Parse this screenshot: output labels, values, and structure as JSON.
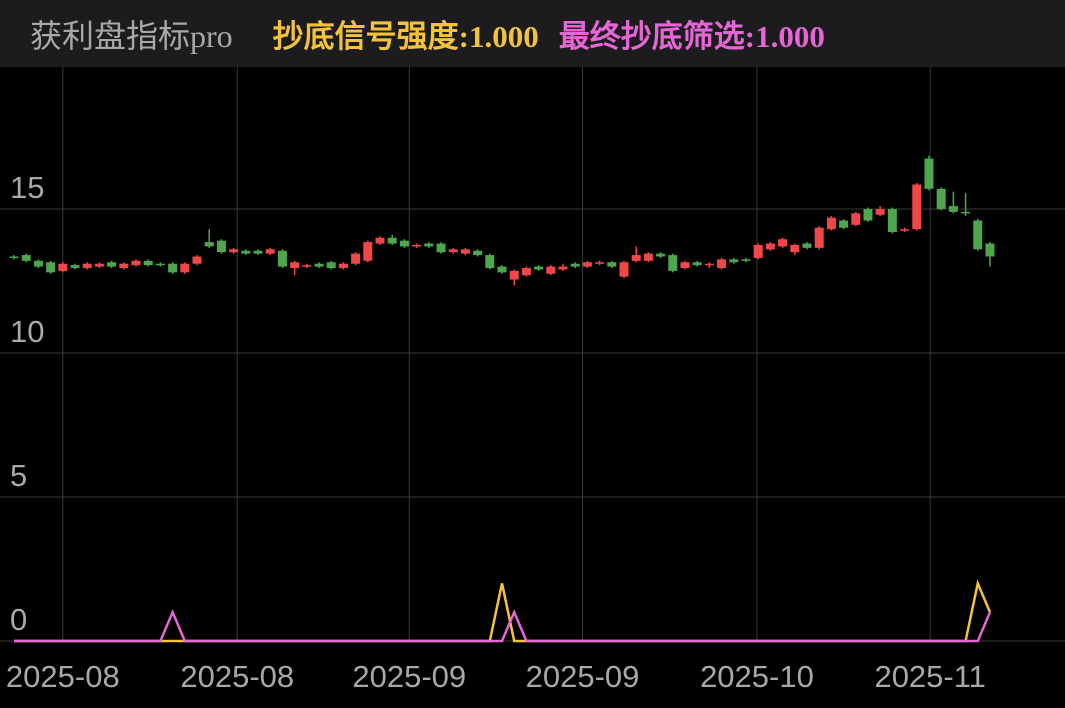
{
  "chart_data": {
    "type": "candlestick",
    "title": "获利盘指标pro",
    "legend_separator": ":",
    "up_color": "#f2474a",
    "down_color": "#4ea64f",
    "open": [
      13.35,
      13.4,
      13.2,
      13.15,
      12.85,
      13.05,
      12.95,
      13.0,
      13.15,
      12.95,
      13.05,
      13.2,
      13.1,
      13.1,
      12.8,
      13.1,
      13.85,
      13.9,
      13.5,
      13.55,
      13.55,
      13.45,
      13.55,
      12.95,
      13.0,
      13.1,
      13.15,
      12.95,
      13.1,
      13.2,
      13.8,
      14.0,
      13.9,
      13.7,
      13.8,
      13.8,
      13.5,
      13.45,
      13.55,
      13.4,
      13.0,
      12.55,
      12.7,
      13.0,
      12.75,
      12.9,
      13.1,
      13.0,
      13.1,
      13.15,
      12.65,
      13.2,
      13.2,
      13.45,
      13.4,
      12.95,
      13.15,
      13.05,
      12.95,
      13.25,
      13.25,
      13.3,
      13.6,
      13.7,
      13.5,
      13.8,
      13.65,
      14.3,
      14.6,
      14.45,
      15.0,
      14.8,
      15.0,
      14.25,
      14.3,
      16.75,
      15.7,
      15.1,
      14.9,
      14.6,
      13.8
    ],
    "close": [
      13.3,
      13.2,
      13.0,
      12.8,
      13.1,
      12.95,
      13.1,
      13.1,
      13.0,
      13.1,
      13.2,
      13.05,
      13.05,
      12.8,
      13.1,
      13.35,
      13.7,
      13.5,
      13.6,
      13.45,
      13.45,
      13.6,
      13.0,
      13.15,
      13.05,
      13.0,
      12.95,
      13.1,
      13.45,
      13.85,
      14.0,
      13.8,
      13.7,
      13.75,
      13.7,
      13.5,
      13.6,
      13.6,
      13.4,
      12.95,
      12.8,
      12.85,
      12.95,
      12.9,
      13.0,
      13.0,
      13.0,
      13.15,
      13.15,
      13.0,
      13.15,
      13.4,
      13.45,
      13.35,
      12.85,
      13.15,
      13.05,
      13.1,
      13.25,
      13.15,
      13.2,
      13.75,
      13.8,
      13.95,
      13.75,
      13.65,
      14.35,
      14.7,
      14.35,
      14.85,
      14.6,
      15.0,
      14.2,
      14.3,
      15.85,
      15.7,
      15.0,
      14.9,
      14.85,
      13.6,
      13.35
    ],
    "high": [
      13.4,
      13.45,
      13.25,
      13.2,
      13.15,
      13.1,
      13.15,
      13.15,
      13.2,
      13.15,
      13.25,
      13.25,
      13.15,
      13.15,
      13.15,
      13.4,
      14.3,
      13.95,
      13.65,
      13.6,
      13.6,
      13.65,
      13.6,
      13.2,
      13.1,
      13.15,
      13.2,
      13.15,
      13.5,
      13.9,
      14.05,
      14.1,
      13.95,
      13.8,
      13.85,
      13.85,
      13.65,
      13.65,
      13.6,
      13.45,
      13.05,
      12.9,
      13.0,
      13.05,
      13.05,
      13.1,
      13.15,
      13.2,
      13.2,
      13.2,
      13.2,
      13.7,
      13.5,
      13.5,
      13.45,
      13.2,
      13.2,
      13.15,
      13.3,
      13.3,
      13.3,
      13.8,
      13.85,
      14.0,
      13.8,
      13.85,
      14.4,
      14.75,
      14.65,
      14.9,
      15.05,
      15.1,
      15.05,
      14.35,
      15.9,
      16.85,
      15.75,
      15.6,
      15.55,
      14.65,
      13.85
    ],
    "low": [
      13.25,
      13.15,
      12.95,
      12.75,
      12.8,
      12.9,
      12.9,
      12.95,
      12.95,
      12.9,
      13.0,
      13.0,
      13.0,
      12.75,
      12.75,
      13.05,
      13.65,
      13.45,
      13.45,
      13.4,
      13.4,
      13.4,
      12.95,
      12.7,
      12.95,
      12.95,
      12.9,
      12.9,
      13.05,
      13.15,
      13.75,
      13.75,
      13.65,
      13.65,
      13.65,
      13.45,
      13.45,
      13.4,
      13.35,
      12.9,
      12.75,
      12.35,
      12.65,
      12.85,
      12.7,
      12.85,
      12.95,
      12.95,
      13.05,
      12.95,
      12.6,
      13.15,
      13.15,
      13.3,
      12.8,
      12.9,
      13.0,
      12.95,
      12.9,
      13.1,
      13.15,
      13.25,
      13.55,
      13.65,
      13.4,
      13.6,
      13.6,
      14.25,
      14.3,
      14.4,
      14.55,
      14.75,
      14.15,
      14.2,
      14.25,
      15.65,
      14.95,
      14.85,
      14.75,
      13.55,
      13.0
    ],
    "series": [
      {
        "name": "抄底信号强度",
        "color": "#f5c23c",
        "value_label": "1.000",
        "values": [
          0,
          0,
          0,
          0,
          0,
          0,
          0,
          0,
          0,
          0,
          0,
          0,
          0,
          0,
          0,
          0,
          0,
          0,
          0,
          0,
          0,
          0,
          0,
          0,
          0,
          0,
          0,
          0,
          0,
          0,
          0,
          0,
          0,
          0,
          0,
          0,
          0,
          0,
          0,
          0,
          2,
          0,
          0,
          0,
          0,
          0,
          0,
          0,
          0,
          0,
          0,
          0,
          0,
          0,
          0,
          0,
          0,
          0,
          0,
          0,
          0,
          0,
          0,
          0,
          0,
          0,
          0,
          0,
          0,
          0,
          0,
          0,
          0,
          0,
          0,
          0,
          0,
          0,
          0,
          2,
          1
        ]
      },
      {
        "name": "最终抄底筛选",
        "color": "#e567d6",
        "value_label": "1.000",
        "values": [
          0,
          0,
          0,
          0,
          0,
          0,
          0,
          0,
          0,
          0,
          0,
          0,
          0,
          1,
          0,
          0,
          0,
          0,
          0,
          0,
          0,
          0,
          0,
          0,
          0,
          0,
          0,
          0,
          0,
          0,
          0,
          0,
          0,
          0,
          0,
          0,
          0,
          0,
          0,
          0,
          0,
          1,
          0,
          0,
          0,
          0,
          0,
          0,
          0,
          0,
          0,
          0,
          0,
          0,
          0,
          0,
          0,
          0,
          0,
          0,
          0,
          0,
          0,
          0,
          0,
          0,
          0,
          0,
          0,
          0,
          0,
          0,
          0,
          0,
          0,
          0,
          0,
          0,
          0,
          0,
          1
        ]
      }
    ],
    "xlim": [
      -1.15,
      86.15
    ],
    "xticks": [
      {
        "value": 4,
        "label": "2025-08"
      },
      {
        "value": 18.3,
        "label": "2025-08"
      },
      {
        "value": 32.4,
        "label": "2025-09"
      },
      {
        "value": 46.6,
        "label": "2025-09"
      },
      {
        "value": 60.9,
        "label": "2025-10"
      },
      {
        "value": 75.1,
        "label": "2025-11"
      }
    ],
    "ylim": [
      0,
      19.93
    ],
    "yticks": [
      0,
      5,
      10,
      15
    ],
    "grid": true
  }
}
